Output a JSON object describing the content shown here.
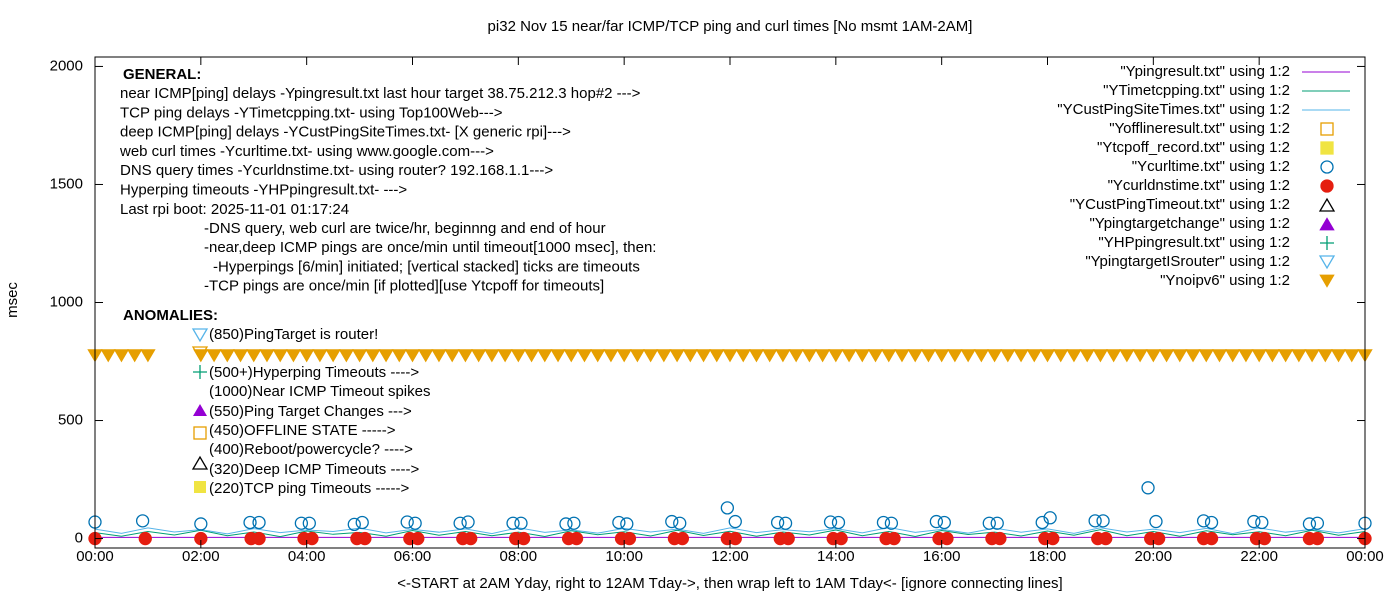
{
  "chart_data": {
    "type": "line",
    "title": "pi32 Nov 15  near/far ICMP/TCP ping and curl times [No msmt 1AM-2AM]",
    "xlabel": "<-START at 2AM Yday, right to 12AM Tday->, then wrap left to 1AM Tday<- [ignore connecting lines]",
    "ylabel": "msec",
    "xlim": [
      0,
      24
    ],
    "xticks": [
      {
        "value": 0,
        "label": "00:00"
      },
      {
        "value": 2,
        "label": "02:00"
      },
      {
        "value": 4,
        "label": "04:00"
      },
      {
        "value": 6,
        "label": "06:00"
      },
      {
        "value": 8,
        "label": "08:00"
      },
      {
        "value": 10,
        "label": "10:00"
      },
      {
        "value": 12,
        "label": "12:00"
      },
      {
        "value": 14,
        "label": "14:00"
      },
      {
        "value": 16,
        "label": "16:00"
      },
      {
        "value": 18,
        "label": "18:00"
      },
      {
        "value": 20,
        "label": "20:00"
      },
      {
        "value": 22,
        "label": "22:00"
      },
      {
        "value": 24,
        "label": "00:00"
      }
    ],
    "ylim": [
      -40,
      2040
    ],
    "yticks": [
      0,
      500,
      1000,
      1500,
      2000
    ],
    "grid": false,
    "legend": "top-right",
    "annotations": {
      "general_title": "GENERAL:",
      "general_lines": [
        "near ICMP[ping] delays -Ypingresult.txt last hour target 38.75.212.3 hop#2 --->",
        "TCP ping delays -YTimetcpping.txt- using Top100Web--->",
        "deep ICMP[ping] delays -YCustPingSiteTimes.txt- [X generic rpi]--->",
        "web curl times -Ycurltime.txt- using www.google.com--->",
        "DNS query times -Ycurldnstime.txt- using router? 192.168.1.1--->",
        "Hyperping timeouts -YHPpingresult.txt- --->",
        "Last rpi boot: 2025-11-01 01:17:24"
      ],
      "notes": [
        "-DNS query, web curl are twice/hr, beginnng and end of hour",
        "-near,deep ICMP pings are once/min until timeout[1000 msec], then:",
        "-Hyperpings [6/min] initiated; [vertical stacked] ticks are timeouts",
        "-TCP pings are once/min [if plotted][use Ytcpoff for timeouts]"
      ],
      "anomalies_title": "ANOMALIES:",
      "anomalies_lines": [
        "(850)PingTarget is router!",
        "(500+)Hyperping Timeouts ---->",
        "(1000)Near ICMP Timeout spikes",
        "(550)Ping Target Changes --->",
        "(450)OFFLINE STATE ----->",
        "(400)Reboot/powercycle? ---->",
        "(320)Deep ICMP Timeouts ---->",
        "(220)TCP ping Timeouts ----->"
      ]
    },
    "series": [
      {
        "name": "\"Ypingresult.txt\" using 1:2",
        "color": "#9400d3",
        "marker": "line",
        "x": [
          0,
          12,
          24
        ],
        "values": [
          5,
          5,
          5
        ]
      },
      {
        "name": "\"YTimetcpping.txt\" using 1:2",
        "color": "#009e73",
        "marker": "line",
        "x": [
          0,
          0.5,
          1,
          1.5,
          2,
          2.5,
          3,
          3.5,
          4,
          4.5,
          5,
          5.5,
          6,
          6.5,
          7,
          7.5,
          8,
          8.5,
          9,
          9.5,
          10,
          10.5,
          11,
          11.5,
          12,
          12.5,
          13,
          13.5,
          14,
          14.5,
          15,
          15.5,
          16,
          16.5,
          17,
          17.5,
          18,
          18.5,
          19,
          19.5,
          20,
          20.5,
          21,
          21.5,
          22,
          22.5,
          23,
          23.5,
          24
        ],
        "values": [
          25,
          10,
          30,
          15,
          35,
          12,
          28,
          8,
          32,
          18,
          26,
          10,
          34,
          14,
          30,
          12,
          27,
          9,
          33,
          16,
          29,
          11,
          35,
          13,
          31,
          10,
          28,
          15,
          36,
          12,
          30,
          9,
          34,
          17,
          27,
          11,
          32,
          14,
          38,
          12,
          30,
          10,
          33,
          16,
          29,
          12,
          35,
          14,
          30
        ]
      },
      {
        "name": "\"YCustPingSiteTimes.txt\" using 1:2",
        "color": "#56b4e9",
        "marker": "line",
        "x": [
          0,
          0.5,
          1,
          1.5,
          2,
          2.5,
          3,
          3.5,
          4,
          4.5,
          5,
          5.5,
          6,
          6.5,
          7,
          7.5,
          8,
          8.5,
          9,
          9.5,
          10,
          10.5,
          11,
          11.5,
          12,
          12.5,
          13,
          13.5,
          14,
          14.5,
          15,
          15.5,
          16,
          16.5,
          17,
          17.5,
          18,
          18.5,
          19,
          19.5,
          20,
          20.5,
          21,
          21.5,
          22,
          22.5,
          23,
          23.5,
          24
        ],
        "values": [
          40,
          22,
          45,
          28,
          38,
          20,
          42,
          25,
          36,
          30,
          44,
          24,
          39,
          27,
          41,
          21,
          46,
          26,
          37,
          23,
          43,
          28,
          40,
          22,
          45,
          25,
          38,
          29,
          42,
          24,
          47,
          26,
          39,
          23,
          44,
          27,
          41,
          22,
          46,
          28,
          40,
          25,
          43,
          21,
          45,
          27,
          39,
          24,
          42
        ]
      },
      {
        "name": "\"Yofflineresult.txt\" using 1:2",
        "color": "#e69f00",
        "marker": "square-open",
        "x": [],
        "values": []
      },
      {
        "name": "\"Ytcpoff_record.txt\" using 1:2",
        "color": "#f0e442",
        "marker": "square",
        "x": [],
        "values": []
      },
      {
        "name": "\"Ycurltime.txt\" using 1:2",
        "color": "#0072b2",
        "marker": "circle-open",
        "x": [
          0,
          0.9,
          2.0,
          2.93,
          3.1,
          3.9,
          4.05,
          4.9,
          5.05,
          5.9,
          6.05,
          6.9,
          7.05,
          7.9,
          8.05,
          8.9,
          9.05,
          9.9,
          10.05,
          10.9,
          11.05,
          11.95,
          12.1,
          12.9,
          13.05,
          13.9,
          14.05,
          14.9,
          15.05,
          15.9,
          16.05,
          16.9,
          17.05,
          17.9,
          18.05,
          18.9,
          19.05,
          19.9,
          20.05,
          20.95,
          21.1,
          21.9,
          22.05,
          22.95,
          23.1,
          24
        ],
        "values": [
          70,
          75,
          62,
          68,
          68,
          65,
          65,
          60,
          68,
          70,
          65,
          65,
          70,
          65,
          65,
          62,
          65,
          68,
          62,
          72,
          65,
          130,
          72,
          68,
          65,
          70,
          68,
          68,
          65,
          72,
          68,
          65,
          65,
          68,
          88,
          75,
          75,
          215,
          72,
          75,
          68,
          72,
          68,
          62,
          65,
          65
        ]
      },
      {
        "name": "\"Ycurldnstime.txt\" using 1:2",
        "color": "#e51e10",
        "marker": "circle",
        "x": [
          0,
          0.95,
          2.0,
          2.95,
          3.1,
          3.95,
          4.1,
          4.95,
          5.1,
          5.95,
          6.1,
          6.95,
          7.1,
          7.95,
          8.1,
          8.95,
          9.1,
          9.95,
          10.1,
          10.95,
          11.1,
          11.95,
          12.1,
          12.95,
          13.1,
          13.95,
          14.1,
          14.95,
          15.1,
          15.95,
          16.1,
          16.95,
          17.1,
          17.95,
          18.1,
          18.95,
          19.1,
          19.95,
          20.1,
          20.95,
          21.1,
          21.95,
          22.1,
          22.95,
          23.1,
          24
        ],
        "values": [
          0,
          0,
          0,
          0,
          0,
          0,
          0,
          0,
          0,
          0,
          0,
          0,
          0,
          0,
          0,
          0,
          0,
          0,
          0,
          0,
          0,
          0,
          0,
          0,
          0,
          0,
          0,
          0,
          0,
          0,
          0,
          0,
          0,
          0,
          0,
          0,
          0,
          0,
          0,
          0,
          0,
          0,
          0,
          0,
          0,
          0
        ]
      },
      {
        "name": "\"YCustPingTimeout.txt\" using 1:2",
        "color": "#000000",
        "marker": "triangle-open",
        "x": [],
        "values": []
      },
      {
        "name": "\"Ypingtargetchange\" using 1:2",
        "color": "#9400d3",
        "marker": "triangle",
        "x": [],
        "values": []
      },
      {
        "name": "\"YHPpingresult.txt\" using 1:2",
        "color": "#009e73",
        "marker": "plus",
        "x": [],
        "values": []
      },
      {
        "name": "\"YpingtargetISrouter\" using 1:2",
        "color": "#56b4e9",
        "marker": "triangle-down-open",
        "x": [],
        "values": []
      },
      {
        "name": "\"Ynoipv6\" using 1:2",
        "color": "#e69f00",
        "marker": "triangle-down",
        "x": [
          0,
          0.25,
          0.5,
          0.75,
          1,
          2,
          2.25,
          2.5,
          2.75,
          3,
          3.25,
          3.5,
          3.75,
          4,
          4.25,
          4.5,
          4.75,
          5,
          5.25,
          5.5,
          5.75,
          6,
          6.25,
          6.5,
          6.75,
          7,
          7.25,
          7.5,
          7.75,
          8,
          8.25,
          8.5,
          8.75,
          9,
          9.25,
          9.5,
          9.75,
          10,
          10.25,
          10.5,
          10.75,
          11,
          11.25,
          11.5,
          11.75,
          12,
          12.25,
          12.5,
          12.75,
          13,
          13.25,
          13.5,
          13.75,
          14,
          14.25,
          14.5,
          14.75,
          15,
          15.25,
          15.5,
          15.75,
          16,
          16.25,
          16.5,
          16.75,
          17,
          17.25,
          17.5,
          17.75,
          18,
          18.25,
          18.5,
          18.75,
          19,
          19.25,
          19.5,
          19.75,
          20,
          20.25,
          20.5,
          20.75,
          21,
          21.25,
          21.5,
          21.75,
          22,
          22.25,
          22.5,
          22.75,
          23,
          23.25,
          23.5,
          23.75,
          24
        ],
        "values": [
          775,
          775,
          775,
          775,
          775,
          775,
          775,
          775,
          775,
          775,
          775,
          775,
          775,
          775,
          775,
          775,
          775,
          775,
          775,
          775,
          775,
          775,
          775,
          775,
          775,
          775,
          775,
          775,
          775,
          775,
          775,
          775,
          775,
          775,
          775,
          775,
          775,
          775,
          775,
          775,
          775,
          775,
          775,
          775,
          775,
          775,
          775,
          775,
          775,
          775,
          775,
          775,
          775,
          775,
          775,
          775,
          775,
          775,
          775,
          775,
          775,
          775,
          775,
          775,
          775,
          775,
          775,
          775,
          775,
          775,
          775,
          775,
          775,
          775,
          775,
          775,
          775,
          775,
          775,
          775,
          775,
          775,
          775,
          775,
          775,
          775,
          775,
          775,
          775,
          775,
          775,
          775,
          775,
          775
        ]
      }
    ]
  }
}
